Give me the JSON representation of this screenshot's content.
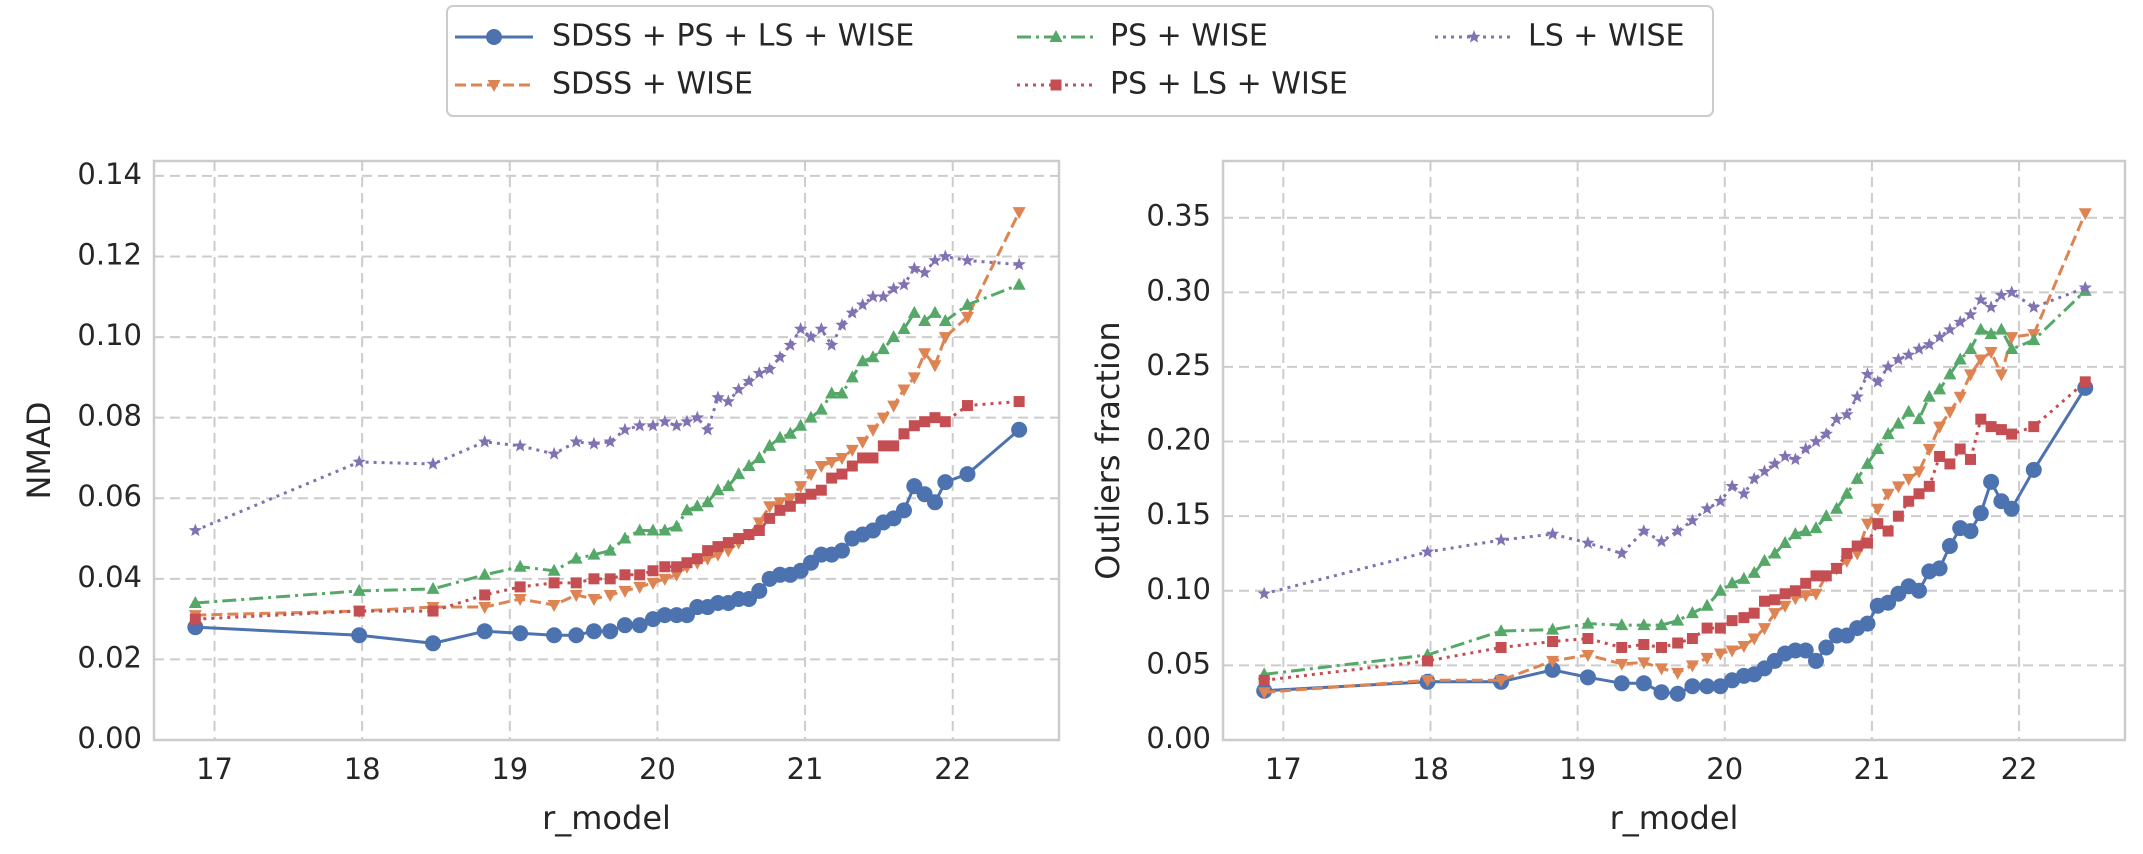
{
  "chart_data": [
    {
      "type": "line",
      "x_label": "r_model",
      "y_label": "NMAD",
      "x": [
        16.87,
        17.98,
        18.48,
        18.83,
        19.07,
        19.3,
        19.45,
        19.57,
        19.68,
        19.78,
        19.88,
        19.97,
        20.05,
        20.13,
        20.2,
        20.27,
        20.34,
        20.41,
        20.48,
        20.55,
        20.62,
        20.69,
        20.76,
        20.83,
        20.9,
        20.97,
        21.04,
        21.11,
        21.18,
        21.25,
        21.32,
        21.39,
        21.46,
        21.53,
        21.6,
        21.67,
        21.74,
        21.81,
        21.88,
        21.95,
        22.1,
        22.45
      ],
      "xlim": [
        16.59,
        22.72
      ],
      "xticks": [
        17,
        18,
        19,
        20,
        21,
        22
      ],
      "ylim": [
        0,
        0.1437
      ],
      "yticks": [
        {
          "value": 0,
          "label": "0.00"
        },
        {
          "value": 0.02,
          "label": "0.02"
        },
        {
          "value": 0.04,
          "label": "0.04"
        },
        {
          "value": 0.06,
          "label": "0.06"
        },
        {
          "value": 0.08,
          "label": "0.08"
        },
        {
          "value": 0.1,
          "label": "0.10"
        },
        {
          "value": 0.12,
          "label": "0.12"
        },
        {
          "value": 0.14,
          "label": "0.14"
        }
      ],
      "grid": true,
      "series": [
        {
          "name": "SDSS + PS + LS + WISE",
          "color": "#4c72b0",
          "marker": "circle",
          "linestyle": "solid",
          "values": [
            0.028,
            0.026,
            0.024,
            0.027,
            0.0265,
            0.026,
            0.026,
            0.027,
            0.027,
            0.0285,
            0.0285,
            0.03,
            0.031,
            0.031,
            0.031,
            0.033,
            0.033,
            0.034,
            0.034,
            0.035,
            0.035,
            0.037,
            0.04,
            0.041,
            0.041,
            0.042,
            0.044,
            0.046,
            0.046,
            0.047,
            0.05,
            0.051,
            0.052,
            0.054,
            0.055,
            0.057,
            0.063,
            0.061,
            0.059,
            0.064,
            0.066,
            0.077
          ]
        },
        {
          "name": "SDSS + WISE",
          "color": "#dd8452",
          "marker": "triangle-down",
          "linestyle": "dashed",
          "values": [
            0.031,
            0.032,
            0.033,
            0.033,
            0.035,
            0.0335,
            0.036,
            0.035,
            0.036,
            0.037,
            0.038,
            0.039,
            0.04,
            0.041,
            0.043,
            0.044,
            0.045,
            0.046,
            0.047,
            0.049,
            0.051,
            0.054,
            0.058,
            0.059,
            0.06,
            0.063,
            0.066,
            0.068,
            0.069,
            0.07,
            0.072,
            0.074,
            0.077,
            0.08,
            0.083,
            0.087,
            0.09,
            0.096,
            0.093,
            0.1,
            0.105,
            0.131
          ]
        },
        {
          "name": "PS + WISE",
          "color": "#55a868",
          "marker": "triangle-up",
          "linestyle": "dashdot",
          "values": [
            0.034,
            0.037,
            0.0375,
            0.041,
            0.043,
            0.042,
            0.045,
            0.046,
            0.047,
            0.05,
            0.052,
            0.052,
            0.052,
            0.053,
            0.057,
            0.058,
            0.059,
            0.062,
            0.063,
            0.066,
            0.068,
            0.07,
            0.073,
            0.075,
            0.076,
            0.078,
            0.08,
            0.082,
            0.086,
            0.086,
            0.09,
            0.094,
            0.095,
            0.097,
            0.1,
            0.102,
            0.106,
            0.104,
            0.106,
            0.104,
            0.108,
            0.113
          ]
        },
        {
          "name": "PS + LS + WISE",
          "color": "#c44e52",
          "marker": "square",
          "linestyle": "dotted",
          "values": [
            0.03,
            0.032,
            0.032,
            0.036,
            0.038,
            0.039,
            0.039,
            0.04,
            0.04,
            0.041,
            0.041,
            0.042,
            0.043,
            0.043,
            0.044,
            0.045,
            0.047,
            0.048,
            0.049,
            0.05,
            0.051,
            0.052,
            0.055,
            0.057,
            0.058,
            0.06,
            0.061,
            0.062,
            0.065,
            0.066,
            0.068,
            0.07,
            0.07,
            0.073,
            0.073,
            0.076,
            0.078,
            0.079,
            0.08,
            0.079,
            0.083,
            0.084
          ]
        },
        {
          "name": "LS + WISE",
          "color": "#8172b3",
          "marker": "star",
          "linestyle": "dotted",
          "values": [
            0.052,
            0.069,
            0.0685,
            0.074,
            0.073,
            0.071,
            0.074,
            0.0735,
            0.074,
            0.077,
            0.078,
            0.078,
            0.079,
            0.078,
            0.079,
            0.08,
            0.077,
            0.085,
            0.084,
            0.087,
            0.089,
            0.091,
            0.092,
            0.095,
            0.098,
            0.102,
            0.1,
            0.102,
            0.098,
            0.103,
            0.106,
            0.108,
            0.11,
            0.11,
            0.112,
            0.113,
            0.117,
            0.116,
            0.119,
            0.12,
            0.119,
            0.118
          ]
        }
      ]
    },
    {
      "type": "line",
      "x_label": "r_model",
      "y_label": "Outliers fraction",
      "x": [
        16.87,
        17.98,
        18.48,
        18.83,
        19.07,
        19.3,
        19.45,
        19.57,
        19.68,
        19.78,
        19.88,
        19.97,
        20.05,
        20.13,
        20.2,
        20.27,
        20.34,
        20.41,
        20.48,
        20.55,
        20.62,
        20.69,
        20.76,
        20.83,
        20.9,
        20.97,
        21.04,
        21.11,
        21.18,
        21.25,
        21.32,
        21.39,
        21.46,
        21.53,
        21.6,
        21.67,
        21.74,
        21.81,
        21.88,
        21.95,
        22.1,
        22.45
      ],
      "xlim": [
        16.59,
        22.72
      ],
      "xticks": [
        17,
        18,
        19,
        20,
        21,
        22
      ],
      "ylim": [
        0,
        0.388
      ],
      "yticks": [
        {
          "value": 0,
          "label": "0.00"
        },
        {
          "value": 0.05,
          "label": "0.05"
        },
        {
          "value": 0.1,
          "label": "0.10"
        },
        {
          "value": 0.15,
          "label": "0.15"
        },
        {
          "value": 0.2,
          "label": "0.20"
        },
        {
          "value": 0.25,
          "label": "0.25"
        },
        {
          "value": 0.3,
          "label": "0.30"
        },
        {
          "value": 0.35,
          "label": "0.35"
        }
      ],
      "grid": true,
      "series": [
        {
          "color": "#4c72b0",
          "marker": "circle",
          "linestyle": "solid",
          "values": [
            0.033,
            0.039,
            0.039,
            0.047,
            0.042,
            0.038,
            0.038,
            0.032,
            0.031,
            0.036,
            0.036,
            0.036,
            0.04,
            0.043,
            0.044,
            0.048,
            0.053,
            0.058,
            0.06,
            0.06,
            0.053,
            0.062,
            0.07,
            0.07,
            0.075,
            0.078,
            0.09,
            0.092,
            0.098,
            0.103,
            0.1,
            0.113,
            0.115,
            0.13,
            0.142,
            0.14,
            0.152,
            0.173,
            0.16,
            0.155,
            0.181,
            0.236
          ]
        },
        {
          "color": "#dd8452",
          "marker": "triangle-down",
          "linestyle": "dashed",
          "values": [
            0.032,
            0.04,
            0.04,
            0.053,
            0.057,
            0.051,
            0.052,
            0.048,
            0.045,
            0.05,
            0.055,
            0.058,
            0.06,
            0.063,
            0.068,
            0.075,
            0.085,
            0.09,
            0.095,
            0.097,
            0.098,
            0.11,
            0.115,
            0.12,
            0.125,
            0.145,
            0.155,
            0.165,
            0.17,
            0.175,
            0.18,
            0.195,
            0.21,
            0.22,
            0.23,
            0.245,
            0.255,
            0.26,
            0.245,
            0.27,
            0.272,
            0.353
          ]
        },
        {
          "color": "#55a868",
          "marker": "triangle-up",
          "linestyle": "dashdot",
          "values": [
            0.044,
            0.057,
            0.073,
            0.074,
            0.078,
            0.077,
            0.077,
            0.077,
            0.08,
            0.085,
            0.09,
            0.1,
            0.105,
            0.108,
            0.112,
            0.12,
            0.125,
            0.132,
            0.138,
            0.14,
            0.142,
            0.15,
            0.155,
            0.165,
            0.175,
            0.185,
            0.195,
            0.205,
            0.212,
            0.22,
            0.215,
            0.23,
            0.235,
            0.245,
            0.255,
            0.262,
            0.275,
            0.272,
            0.275,
            0.262,
            0.268,
            0.301
          ]
        },
        {
          "color": "#c44e52",
          "marker": "square",
          "linestyle": "dotted",
          "values": [
            0.04,
            0.053,
            0.062,
            0.066,
            0.068,
            0.062,
            0.064,
            0.062,
            0.065,
            0.068,
            0.075,
            0.075,
            0.08,
            0.082,
            0.085,
            0.093,
            0.094,
            0.098,
            0.1,
            0.105,
            0.11,
            0.11,
            0.115,
            0.125,
            0.13,
            0.132,
            0.145,
            0.14,
            0.15,
            0.16,
            0.165,
            0.17,
            0.19,
            0.185,
            0.195,
            0.188,
            0.215,
            0.21,
            0.208,
            0.205,
            0.21,
            0.24
          ]
        },
        {
          "color": "#8172b3",
          "marker": "star",
          "linestyle": "dotted",
          "values": [
            0.098,
            0.126,
            0.134,
            0.138,
            0.132,
            0.125,
            0.14,
            0.133,
            0.14,
            0.147,
            0.155,
            0.16,
            0.17,
            0.165,
            0.175,
            0.18,
            0.185,
            0.19,
            0.188,
            0.195,
            0.2,
            0.205,
            0.215,
            0.218,
            0.23,
            0.245,
            0.24,
            0.25,
            0.255,
            0.258,
            0.262,
            0.265,
            0.27,
            0.275,
            0.28,
            0.285,
            0.295,
            0.29,
            0.298,
            0.3,
            0.29,
            0.303
          ]
        }
      ]
    }
  ]
}
